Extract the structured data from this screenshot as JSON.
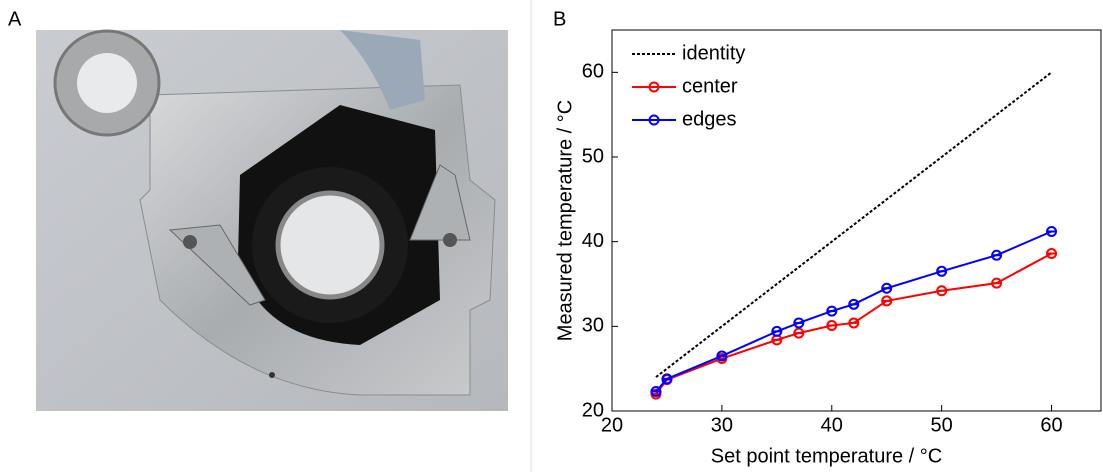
{
  "panel_labels": [
    "A",
    "B"
  ],
  "chart_data": {
    "type": "line",
    "xlabel": "Set point temperature / °C",
    "ylabel": "Measured temperature / °C",
    "x": [
      24,
      25,
      30,
      35,
      37,
      40,
      42,
      45,
      50,
      55,
      60
    ],
    "series": [
      {
        "name": "identity",
        "color": "#000000",
        "linestyle": "dotted",
        "marker": null,
        "values": [
          24,
          25,
          30,
          35,
          37,
          40,
          42,
          45,
          50,
          55,
          60
        ]
      },
      {
        "name": "center",
        "color": "#ff0000",
        "linestyle": "solid",
        "marker": "o",
        "values": [
          22.0,
          23.7,
          26.2,
          28.4,
          29.2,
          30.1,
          30.4,
          33.0,
          34.2,
          35.1,
          38.6
        ]
      },
      {
        "name": "edges",
        "color": "#0000ff",
        "linestyle": "solid",
        "marker": "o",
        "values": [
          22.3,
          23.8,
          26.5,
          29.4,
          30.4,
          31.8,
          32.6,
          34.5,
          36.5,
          38.4,
          41.2
        ]
      }
    ],
    "xlim": [
      20,
      64.5
    ],
    "ylim": [
      20,
      65
    ],
    "xticks": [
      20,
      30,
      40,
      50,
      60
    ],
    "yticks": [
      20,
      30,
      40,
      50,
      60
    ],
    "legend": "upper left"
  }
}
